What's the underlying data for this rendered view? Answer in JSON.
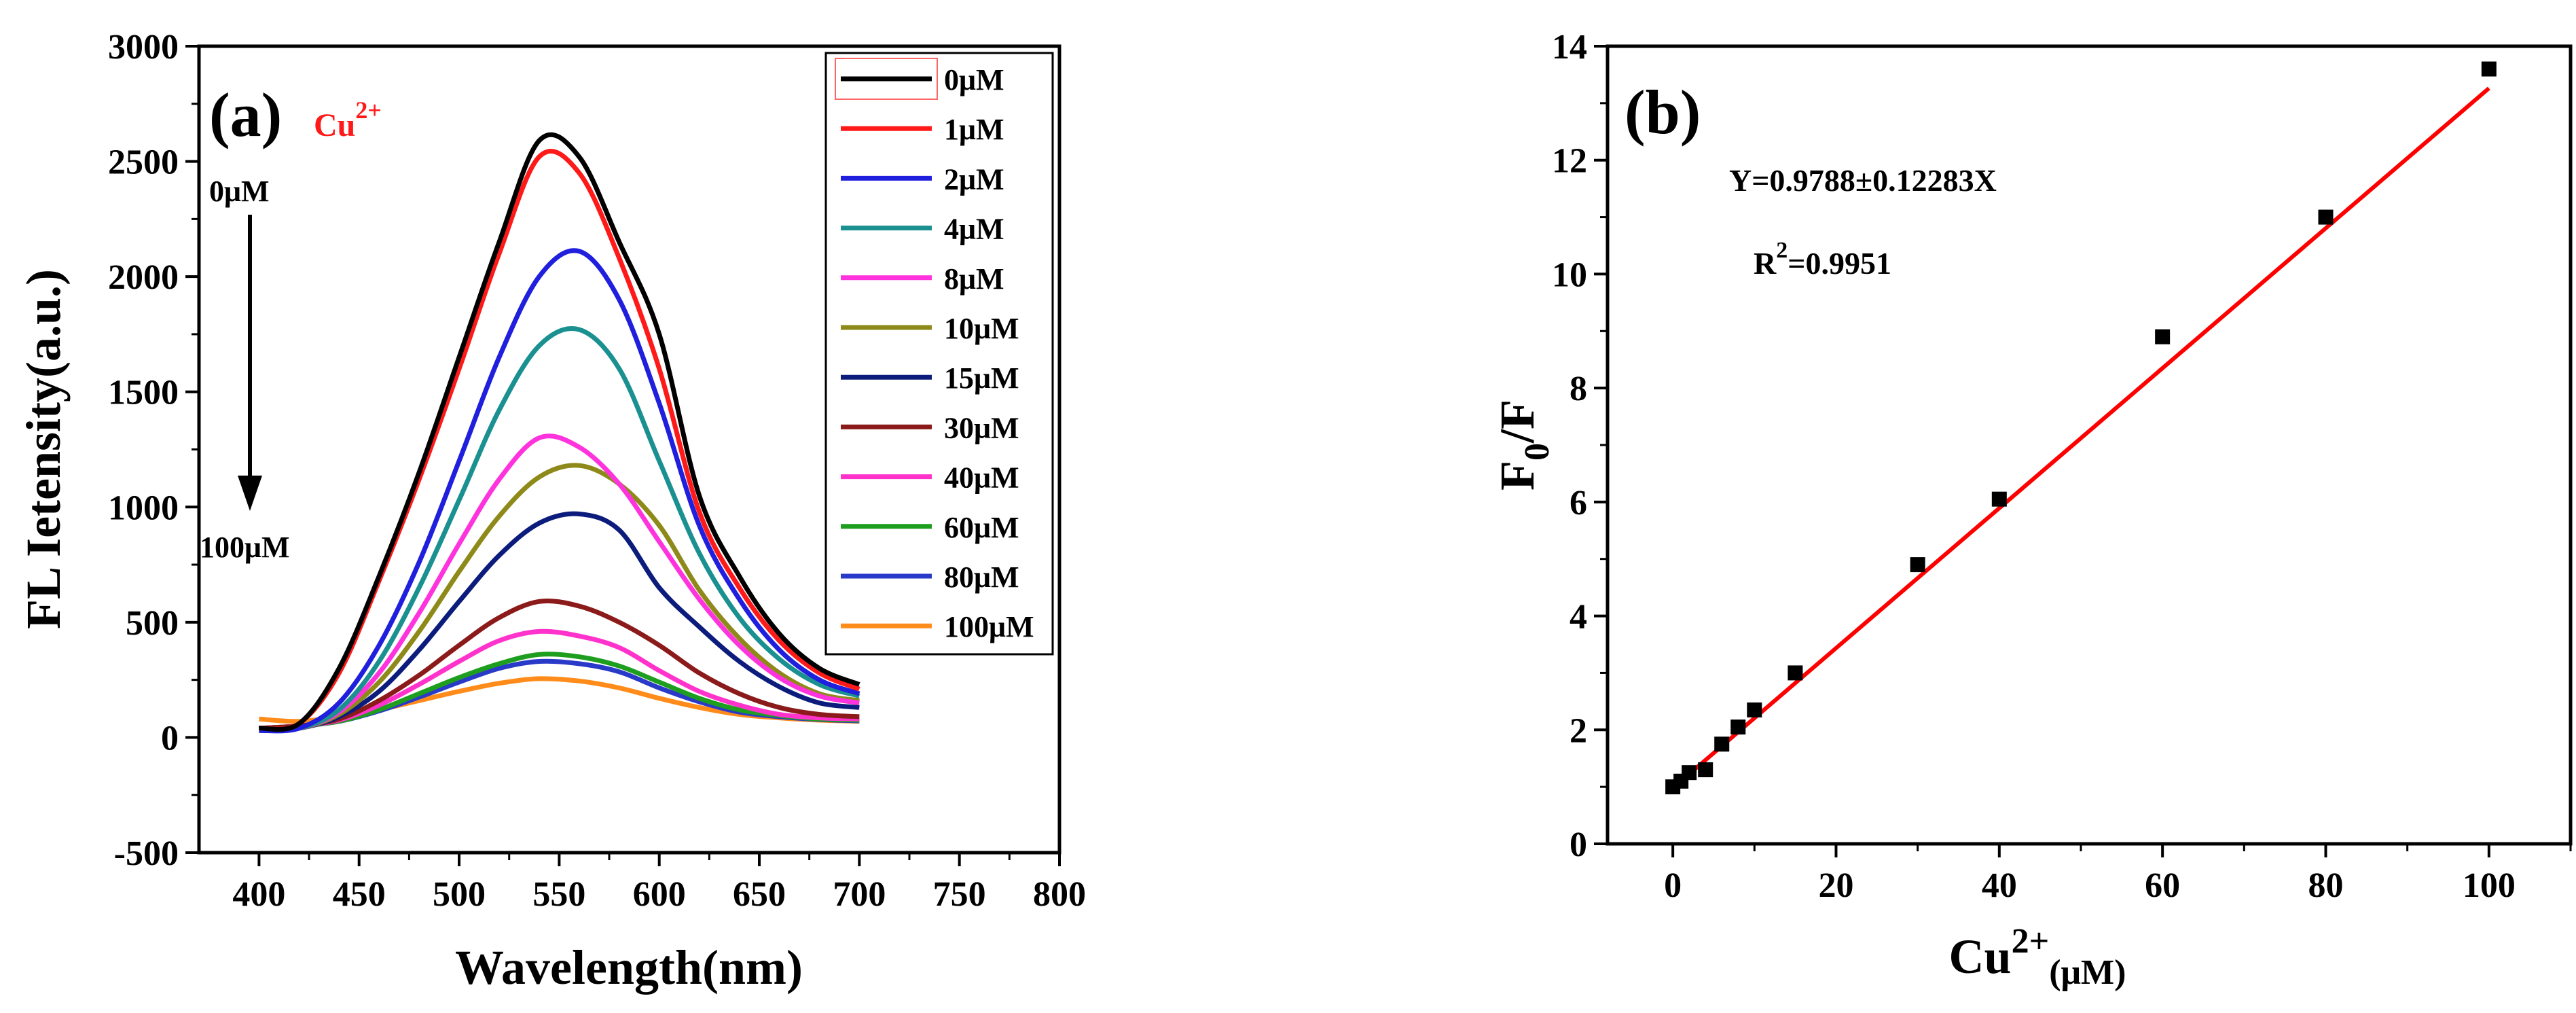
{
  "chart_data": [
    {
      "type": "line",
      "panel_label": "(a)",
      "ion_label": "Cu",
      "ion_charge": "2+",
      "arrow_top_label": "0μM",
      "arrow_bottom_label": "100μM",
      "xlabel": "Wavelength(nm)",
      "ylabel": "FL Ietensity(a.u.)",
      "xlim": [
        370,
        800
      ],
      "ylim": [
        -500,
        3000
      ],
      "xticks": [
        400,
        450,
        500,
        550,
        600,
        650,
        700,
        750,
        800
      ],
      "yticks": [
        -500,
        0,
        500,
        1000,
        1500,
        2000,
        2500,
        3000
      ],
      "legend_position": "top-right",
      "x": [
        400,
        420,
        440,
        460,
        480,
        500,
        520,
        540,
        560,
        580,
        600,
        620,
        640,
        660,
        680,
        700
      ],
      "series": [
        {
          "name": "0μM",
          "color": "#000000",
          "values": [
            40,
            60,
            300,
            700,
            1150,
            1650,
            2150,
            2590,
            2520,
            2150,
            1750,
            1050,
            700,
            450,
            300,
            230
          ]
        },
        {
          "name": "1μM",
          "color": "#ff1a1a",
          "values": [
            40,
            60,
            280,
            680,
            1120,
            1600,
            2100,
            2520,
            2450,
            2080,
            1600,
            980,
            650,
            420,
            280,
            210
          ]
        },
        {
          "name": "2μM",
          "color": "#1f1fdd",
          "values": [
            30,
            40,
            150,
            400,
            760,
            1200,
            1650,
            2000,
            2110,
            1900,
            1450,
            920,
            600,
            380,
            250,
            190
          ]
        },
        {
          "name": "4μM",
          "color": "#1a9090",
          "values": [
            30,
            40,
            120,
            330,
            650,
            1030,
            1420,
            1700,
            1770,
            1600,
            1200,
            800,
            520,
            340,
            230,
            180
          ]
        },
        {
          "name": "8μM",
          "color": "#ff33dd",
          "values": [
            30,
            40,
            110,
            280,
            540,
            840,
            1120,
            1300,
            1260,
            1100,
            850,
            600,
            400,
            260,
            180,
            150
          ]
        },
        {
          "name": "10μM",
          "color": "#8e8a1a",
          "values": [
            30,
            40,
            100,
            240,
            460,
            720,
            960,
            1130,
            1180,
            1100,
            920,
            640,
            430,
            280,
            190,
            160
          ]
        },
        {
          "name": "15μM",
          "color": "#0c1c7c",
          "values": [
            30,
            40,
            90,
            200,
            380,
            590,
            790,
            930,
            970,
            900,
            650,
            480,
            330,
            220,
            150,
            130
          ]
        },
        {
          "name": "30μM",
          "color": "#8b1a1a",
          "values": [
            40,
            50,
            80,
            160,
            270,
            400,
            520,
            590,
            570,
            500,
            400,
            280,
            190,
            130,
            100,
            90
          ]
        },
        {
          "name": "40μM",
          "color": "#ff33cc",
          "values": [
            40,
            50,
            75,
            140,
            230,
            330,
            420,
            460,
            440,
            390,
            290,
            200,
            140,
            100,
            85,
            80
          ]
        },
        {
          "name": "60μM",
          "color": "#1e9e1e",
          "values": [
            40,
            50,
            70,
            120,
            190,
            260,
            320,
            360,
            350,
            310,
            240,
            170,
            120,
            95,
            80,
            75
          ]
        },
        {
          "name": "80μM",
          "color": "#2a3ac8",
          "values": [
            40,
            50,
            70,
            115,
            175,
            240,
            300,
            330,
            320,
            285,
            215,
            155,
            110,
            90,
            78,
            72
          ]
        },
        {
          "name": "100μM",
          "color": "#ff8c1a",
          "values": [
            80,
            70,
            90,
            120,
            160,
            200,
            235,
            255,
            245,
            215,
            170,
            130,
            100,
            85,
            75,
            70
          ]
        }
      ]
    },
    {
      "type": "scatter",
      "panel_label": "(b)",
      "equation": "Y=0.9788±0.12283X",
      "r2_prefix": "R",
      "r2_sup": "2",
      "r2_value": "=0.9951",
      "xlabel_main": "Cu",
      "xlabel_sup": "2+",
      "xlabel_unit": "(μM)",
      "ylabel_main": "F",
      "ylabel_sub": "0",
      "ylabel_rest": "/F",
      "xlim": [
        -8,
        110
      ],
      "ylim": [
        0,
        14
      ],
      "xticks": [
        0,
        20,
        40,
        60,
        80,
        100
      ],
      "yticks": [
        0,
        2,
        4,
        6,
        8,
        10,
        12,
        14
      ],
      "points_color": "#000000",
      "fit_color": "#ff0000",
      "fit": {
        "intercept": 0.9788,
        "slope": 0.12283,
        "x_range": [
          0,
          100
        ]
      },
      "points": [
        {
          "x": 0,
          "y": 1.0
        },
        {
          "x": 1,
          "y": 1.1
        },
        {
          "x": 2,
          "y": 1.25
        },
        {
          "x": 4,
          "y": 1.3
        },
        {
          "x": 6,
          "y": 1.75
        },
        {
          "x": 8,
          "y": 2.05
        },
        {
          "x": 10,
          "y": 2.35
        },
        {
          "x": 15,
          "y": 3.0
        },
        {
          "x": 30,
          "y": 4.9
        },
        {
          "x": 40,
          "y": 6.05
        },
        {
          "x": 60,
          "y": 8.9
        },
        {
          "x": 80,
          "y": 11.0
        },
        {
          "x": 100,
          "y": 13.6
        }
      ]
    }
  ]
}
